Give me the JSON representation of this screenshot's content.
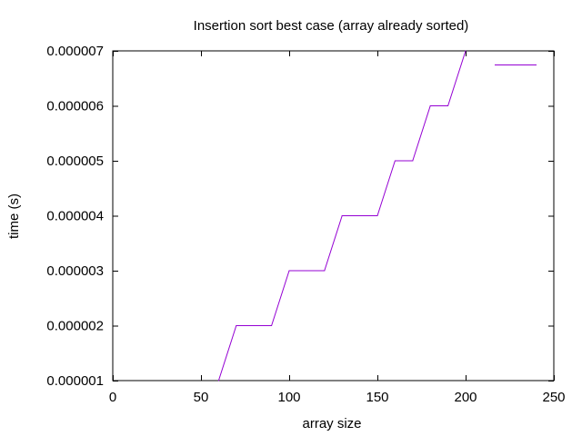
{
  "chart_data": {
    "type": "line",
    "title": "Insertion sort best case (array already sorted)",
    "xlabel": "array size",
    "ylabel": "time (s)",
    "xlim": [
      0,
      250
    ],
    "ylim": [
      1e-06,
      7e-06
    ],
    "x_ticks": [
      0,
      50,
      100,
      150,
      200,
      250
    ],
    "x_tick_labels": [
      "0",
      "50",
      "100",
      "150",
      "200",
      "250"
    ],
    "y_ticks": [
      1e-06,
      2e-06,
      3e-06,
      4e-06,
      5e-06,
      6e-06,
      7e-06
    ],
    "y_tick_labels": [
      "0.000001",
      "0.000002",
      "0.000003",
      "0.000004",
      "0.000005",
      "0.000006",
      "0.000007"
    ],
    "grid": false,
    "legend": "top-right",
    "series": [
      {
        "color": "#9400d3",
        "x": [
          60,
          70,
          80,
          90,
          100,
          110,
          120,
          130,
          140,
          150,
          160,
          170,
          180,
          190,
          200
        ],
        "y": [
          1e-06,
          2e-06,
          2e-06,
          2e-06,
          3e-06,
          3e-06,
          3e-06,
          4e-06,
          4e-06,
          4e-06,
          5e-06,
          5e-06,
          6e-06,
          6e-06,
          7e-06
        ]
      }
    ]
  }
}
